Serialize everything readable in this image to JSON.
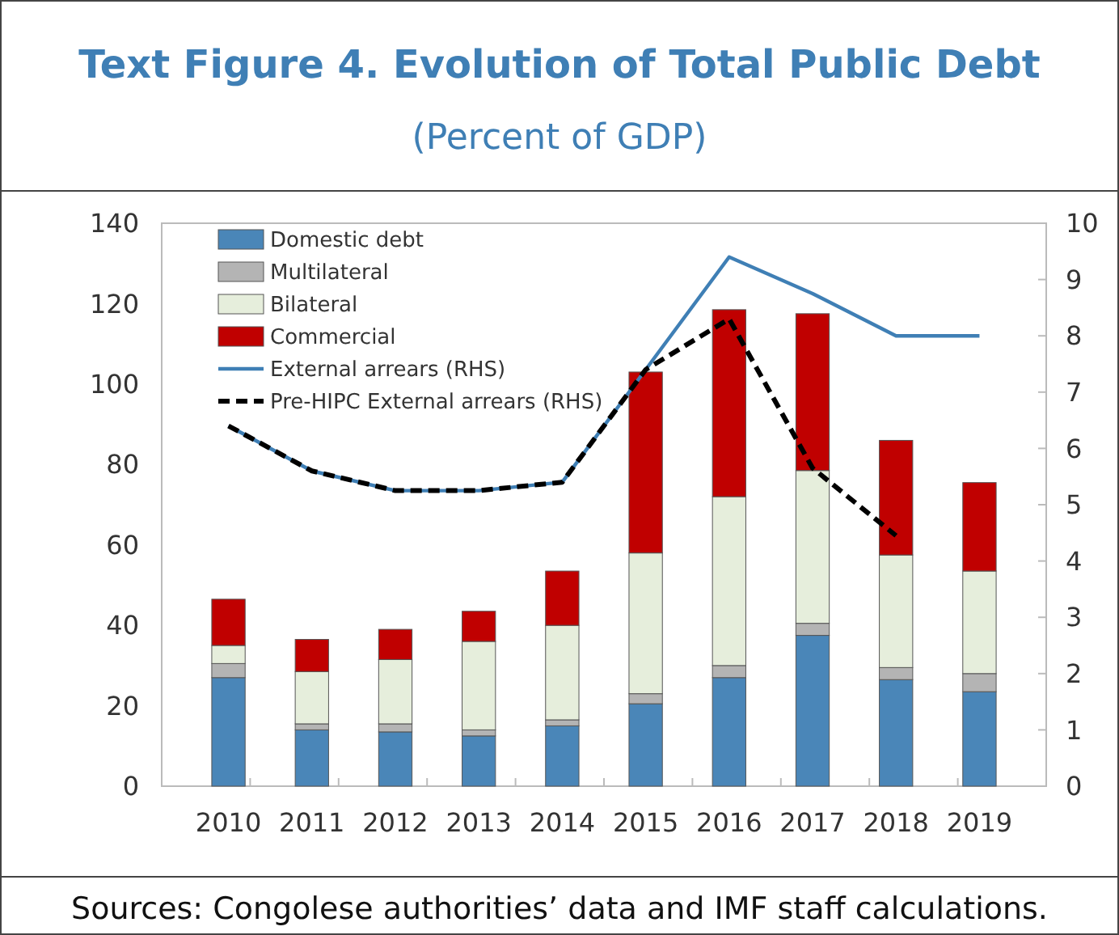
{
  "chart_data": {
    "type": "bar",
    "title": "Text Figure 4. Evolution of Total Public Debt",
    "subtitle": "(Percent of GDP)",
    "stacked": true,
    "categories": [
      "2010",
      "2011",
      "2012",
      "2013",
      "2014",
      "2015",
      "2016",
      "2017",
      "2018",
      "2019"
    ],
    "series": [
      {
        "name": "Domestic debt",
        "color": "#4a86b8",
        "values": [
          27,
          14,
          13.5,
          12.5,
          15,
          20.5,
          27,
          37.5,
          26.5,
          23.5
        ]
      },
      {
        "name": "Multilateral",
        "color": "#b4b4b4",
        "values": [
          3.5,
          1.5,
          2,
          1.5,
          1.5,
          2.5,
          3,
          3,
          3,
          4.5
        ]
      },
      {
        "name": "Bilateral",
        "color": "#e6eedc",
        "values": [
          4.5,
          13,
          16,
          22,
          23.5,
          35,
          42,
          38,
          28,
          25.5
        ]
      },
      {
        "name": "Commercial",
        "color": "#c00000",
        "values": [
          11.5,
          8,
          7.5,
          7.5,
          13.5,
          45,
          46.5,
          39,
          28.5,
          22
        ]
      },
      {
        "name": "External arrears (RHS)",
        "type": "line",
        "axis": "y2",
        "color": "#3f7fb5",
        "line_style": "solid",
        "values": [
          6.4,
          5.6,
          5.25,
          5.25,
          5.4,
          7.4,
          9.4,
          8.75,
          8,
          8
        ]
      },
      {
        "name": "Pre-HIPC External arrears (RHS)",
        "type": "line",
        "axis": "y2",
        "color": "#000000",
        "line_style": "dashed",
        "values": [
          6.4,
          5.6,
          5.25,
          5.25,
          5.4,
          7.4,
          8.3,
          5.65,
          4.45,
          null
        ]
      }
    ],
    "ylim": [
      0,
      140
    ],
    "yticks": [
      0,
      20,
      40,
      60,
      80,
      100,
      120,
      140
    ],
    "y2lim": [
      0,
      10
    ],
    "y2ticks": [
      0,
      1,
      2,
      3,
      4,
      5,
      6,
      7,
      8,
      9,
      10
    ],
    "grid": false,
    "legend": "top left",
    "annotations": [
      "Sources: Congolese authorities’ data and IMF staff calculations."
    ]
  }
}
